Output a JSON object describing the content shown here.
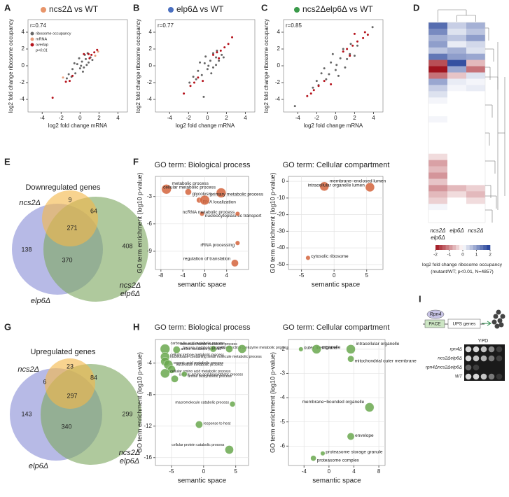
{
  "chart_data": [
    {
      "type": "scatter",
      "panel": "A",
      "title": "ncs2Δ vs WT",
      "title_marker": "#e8956a",
      "annotation": "r=0.74",
      "xlabel": "log2 fold change mRNA",
      "ylabel": "log2 fold change ribosome occupancy",
      "xlim": [
        -5.5,
        5
      ],
      "ylim": [
        -5.5,
        5.5
      ],
      "xticks": [
        -4,
        -2,
        0,
        2,
        4
      ],
      "yticks": [
        -4,
        -2,
        0,
        2,
        4
      ],
      "legend": true,
      "legend_note": "p<0.01",
      "series": [
        {
          "name": "ribosome occupancy",
          "color": "#666666",
          "x": [
            -1.2,
            -0.8,
            -0.5,
            -0.3,
            0,
            0.2,
            0.4,
            0.6,
            0.9,
            1.1,
            -0.6,
            0.3,
            -0.1,
            0.7,
            -0.9,
            0.5,
            1.3,
            -1.4,
            0.1,
            0.8
          ],
          "values": [
            -1.0,
            -0.4,
            -0.9,
            0.2,
            -0.3,
            0.5,
            -0.2,
            0.8,
            0.4,
            1.0,
            0.3,
            -0.7,
            0.9,
            0.1,
            -1.3,
            1.3,
            0.7,
            -1.5,
            0.0,
            1.5
          ]
        },
        {
          "name": "mRNA",
          "color": "#e79a78",
          "x": [
            1.6,
            -1.8,
            1.9
          ],
          "values": [
            1.2,
            -1.4,
            1.7
          ]
        },
        {
          "name": "overlap",
          "color": "#b5121b",
          "x": [
            0.9,
            1.2,
            1.5,
            1.8,
            -0.8,
            -1.1,
            -1.5,
            -2.9,
            1.0,
            0.4
          ],
          "values": [
            1.4,
            1.3,
            1.6,
            1.9,
            -1.2,
            -1.8,
            -1.9,
            -3.8,
            0.9,
            1.4
          ]
        }
      ]
    },
    {
      "type": "scatter",
      "panel": "B",
      "title": "elp6Δ vs WT",
      "title_marker": "#4a6fc0",
      "annotation": "r=0.77",
      "xlabel": "log2 fold change mRNA",
      "ylabel": "log2 fold change ribosome occupancy",
      "xlim": [
        -5.5,
        5
      ],
      "ylim": [
        -5.5,
        5.5
      ],
      "xticks": [
        -4,
        -2,
        0,
        2,
        4
      ],
      "yticks": [
        -4,
        -2,
        0,
        2,
        4
      ],
      "series": [
        {
          "color": "#666666",
          "x": [
            -1.5,
            -1,
            -0.6,
            -0.3,
            0,
            0.3,
            0.6,
            0.9,
            1.2,
            1.5,
            -0.8,
            0.4,
            -0.2,
            0.9,
            -1.2,
            0.6,
            1.7,
            -1.9,
            0.1,
            1.0,
            -0.4
          ],
          "values": [
            -1.3,
            -0.6,
            -1.1,
            0.3,
            -0.4,
            0.6,
            -0.2,
            1.0,
            0.6,
            1.3,
            0.4,
            -0.9,
            1.1,
            0.1,
            -1.6,
            1.5,
            1.0,
            -2.0,
            0,
            1.8,
            -3.7
          ]
        },
        {
          "color": "#b5121b",
          "x": [
            1.0,
            1.4,
            1.8,
            2.2,
            -1.0,
            -1.4,
            -1.8,
            -2.5,
            0.6,
            2.6,
            1.2,
            -0.5
          ],
          "values": [
            1.6,
            1.8,
            2.2,
            2.6,
            -1.4,
            -2.0,
            -2.4,
            -3.3,
            1.3,
            3.4,
            0.9,
            -1.8
          ]
        }
      ]
    },
    {
      "type": "scatter",
      "panel": "C",
      "title": "ncs2Δelp6Δ vs WT",
      "title_marker": "#3a9a4a",
      "annotation": "r=0.85",
      "xlabel": "log2 fold change mRNA",
      "ylabel": "log2 fold change ribosome occupancy",
      "xlim": [
        -5.5,
        5
      ],
      "ylim": [
        -5.5,
        5.5
      ],
      "xticks": [
        -4,
        -2,
        0,
        2,
        4
      ],
      "yticks": [
        -4,
        -2,
        0,
        2,
        4
      ],
      "series": [
        {
          "color": "#666666",
          "x": [
            -2,
            -1.5,
            -1,
            -0.5,
            0,
            0.5,
            1,
            1.5,
            2,
            -1.2,
            0.3,
            -0.3,
            1.2,
            -1.8,
            0.8,
            2.3,
            -2.4,
            0.1,
            1.6,
            -0.7,
            -4.3,
            3.9
          ],
          "values": [
            -1.8,
            -0.9,
            -1.6,
            0.4,
            -0.5,
            0.9,
            -0.2,
            1.4,
            1.2,
            -0.3,
            -1.2,
            1.4,
            0.8,
            -2.3,
            2.0,
            2.4,
            -2.6,
            0.1,
            2.6,
            -1.0,
            -4.8,
            4.6
          ]
        },
        {
          "color": "#b5121b",
          "x": [
            1.2,
            1.8,
            2.3,
            2.9,
            -1.2,
            -1.8,
            -2.3,
            -3.0,
            0.8,
            3.4,
            -0.5,
            1.5,
            -2.6,
            2.0,
            3.1
          ],
          "values": [
            2.0,
            2.4,
            2.9,
            3.3,
            -1.8,
            -2.4,
            -2.9,
            -3.6,
            1.7,
            3.7,
            -2.2,
            1.2,
            -3.3,
            3.8,
            4.0
          ]
        }
      ]
    },
    {
      "type": "heatmap",
      "panel": "D",
      "columns": [
        [
          "ncs2Δ",
          "elp6Δ"
        ],
        [
          "elp6Δ"
        ],
        [
          "ncs2Δ"
        ]
      ],
      "rows": [
        [
          1.5,
          0.5,
          0.8
        ],
        [
          1.2,
          0.3,
          0.6
        ],
        [
          0.8,
          0.6,
          1.0
        ],
        [
          1.0,
          0.2,
          0.4
        ],
        [
          0.6,
          0.8,
          0.3
        ],
        [
          1.4,
          1.0,
          0.9
        ],
        [
          -1.5,
          1.8,
          -0.6
        ],
        [
          -2,
          0.9,
          -1.2
        ],
        [
          -1.2,
          -0.5,
          0.3
        ],
        [
          0.9,
          0.2,
          0.1
        ],
        [
          0.5,
          0.1,
          0.2
        ],
        [
          0.3,
          0,
          0
        ],
        [
          0.1,
          0,
          0
        ],
        [
          0,
          0,
          0
        ],
        [
          0,
          0,
          0
        ],
        [
          0.1,
          0,
          0
        ],
        [
          0,
          0,
          0
        ],
        [
          0,
          0,
          0
        ],
        [
          0,
          0,
          0
        ],
        [
          0,
          0,
          0
        ],
        [
          0,
          0,
          0
        ],
        [
          -0.3,
          0,
          0
        ],
        [
          -0.8,
          0,
          0
        ],
        [
          -0.6,
          0,
          0
        ],
        [
          -0.9,
          0,
          0
        ],
        [
          -0.5,
          0,
          0
        ],
        [
          -0.9,
          -0.6,
          -0.4
        ],
        [
          -0.6,
          -0.3,
          -0.6
        ],
        [
          -0.4,
          0,
          -0.3
        ],
        [
          0.1,
          0,
          0
        ],
        [
          0,
          0,
          0
        ],
        [
          0,
          0,
          0
        ]
      ],
      "colorbar_ticks": [
        -2,
        -1,
        0,
        1,
        2
      ],
      "colorbar_label": [
        "log2 fold change ribosome occupancy",
        "(mutant/WT; p<0.01, N=4857)"
      ]
    },
    {
      "type": "venn",
      "panel": "E",
      "title": "Downregulated genes",
      "sets": [
        {
          "name": "ncs2Δ",
          "color": "#f3b84a"
        },
        {
          "name": "elp6Δ",
          "color": "#8a8fd6"
        },
        {
          "name": [
            "ncs2Δ",
            "elp6Δ"
          ],
          "color": "#7ea861"
        }
      ],
      "region_values": [
        9,
        64,
        271,
        138,
        370,
        408
      ]
    },
    {
      "type": "bubble",
      "panel": "F",
      "title": "GO term: Biological process",
      "xlabel": "semantic space",
      "ylabel": "GO term enrichment (log10 p-value)",
      "xlim": [
        -9,
        8
      ],
      "ylim": [
        -11,
        -0.8
      ],
      "xticks": [
        -8,
        -4,
        0,
        4
      ],
      "yticks": [
        -3,
        -6,
        -9
      ],
      "grid": true,
      "color": "#d4643c",
      "labels": [
        "metabolic process",
        "glycolysis",
        "cellular metabolic process",
        "RNA localization",
        "primary metabolic process",
        "nucleocytoplasmic transport",
        "ncRNA metabolic process",
        "rRNA processing",
        "regulation of translation"
      ],
      "x": [
        -7,
        -3,
        3,
        -1,
        0,
        -0.5,
        6,
        6,
        5.5
      ],
      "values": [
        -2.2,
        -2.5,
        -2.6,
        -3.4,
        -3.4,
        -4.9,
        -4.9,
        -8.1,
        -10.3
      ],
      "sizes": [
        9,
        4,
        9,
        3,
        9,
        2,
        2,
        2,
        5
      ]
    },
    {
      "type": "bubble",
      "title": "GO term: Cellular compartment",
      "xlabel": "semantic space",
      "ylabel": "GO term enrichment (log10 p-value)",
      "xlim": [
        -7,
        7.5
      ],
      "ylim": [
        -53,
        3
      ],
      "xticks": [
        -5,
        0,
        5
      ],
      "yticks": [
        0,
        -10,
        -20,
        -30,
        -40,
        -50
      ],
      "grid": true,
      "color": "#d4643c",
      "labels": [
        "membrane−enclosed lumen",
        "intracellular organelle lumen",
        "cytosolic ribosome"
      ],
      "x": [
        -1.5,
        5.5,
        -4
      ],
      "values": [
        -3,
        -3.5,
        -46
      ],
      "sizes": [
        8,
        8,
        2
      ]
    },
    {
      "type": "venn",
      "panel": "G",
      "title": "Upregulated genes",
      "sets": [
        {
          "name": "ncs2Δ",
          "color": "#f3b84a"
        },
        {
          "name": "elp6Δ",
          "color": "#8a8fd6"
        },
        {
          "name": [
            "ncs2Δ",
            "elp6Δ"
          ],
          "color": "#7ea861"
        }
      ],
      "region_values": [
        23,
        6,
        84,
        297,
        143,
        340,
        299
      ]
    },
    {
      "type": "bubble",
      "panel": "H",
      "title": "GO term: Biological process",
      "xlabel": "semantic space",
      "ylabel": "GO term enrichment (log10 p-value)",
      "xlim": [
        -7.5,
        7
      ],
      "ylim": [
        -17,
        -1
      ],
      "xticks": [
        -5,
        0,
        5
      ],
      "yticks": [
        -4,
        -8,
        -12,
        -16
      ],
      "grid": true,
      "color": "#6aa84f",
      "labels": [
        "carboxylic acid metabolic process",
        "amine metabolic process",
        "oxidoreduction coenzyme metabolic process",
        "hexose metabolic process",
        "monosaccharide metabolic process",
        "cellular ketone metabolic process",
        "nucleobase-containing small molecule metabolic process",
        "organic acid metabolic process",
        "nucleotide metabolic process",
        "cellular amino acid metabolic process",
        "cellular amino acid biosynthetic process",
        "amine biosynthetic process",
        "macromolecule catabolic process",
        "response to heat",
        "cellular protein catabolic process"
      ],
      "x": [
        -6,
        -4.2,
        1.5,
        4,
        6,
        -6,
        -6,
        -5.5,
        -5,
        -6,
        -4.5,
        -3,
        4.5,
        -0.7,
        4
      ],
      "values": [
        -2.2,
        -2.3,
        -2.2,
        -2.2,
        -2.2,
        -3.2,
        -3.8,
        -4.2,
        -4.8,
        -5.3,
        -6,
        -5.4,
        -9.2,
        -11.8,
        -15
      ],
      "sizes": [
        9,
        5,
        4,
        5,
        7,
        8,
        7,
        8,
        6,
        8,
        5,
        3,
        3,
        5,
        7
      ]
    },
    {
      "type": "bubble",
      "title": "GO term: Cellular compartment",
      "xlabel": "semantic space",
      "ylabel": "GO term enrichment (log10 p-value)",
      "xlim": [
        -6.5,
        9
      ],
      "ylim": [
        -6.8,
        -1.6
      ],
      "xticks": [
        -4,
        0,
        4,
        8
      ],
      "yticks": [
        -2,
        -3,
        -4,
        -5,
        -6
      ],
      "grid": true,
      "color": "#6aa84f",
      "labels": [
        "outer membrane",
        "organelle",
        "intracellular organelle",
        "mitochondrial outer membrane",
        "membrane−bounded organelle",
        "envelope",
        "proteasome storage granule",
        "proteasome complex"
      ],
      "x": [
        -4.5,
        -2,
        3.5,
        3.5,
        6.5,
        3.5,
        -1,
        -2.5
      ],
      "values": [
        -2,
        -2,
        -2,
        -2.4,
        -4.4,
        -5.6,
        -6.3,
        -6.5
      ],
      "sizes": [
        2,
        8,
        8,
        4,
        8,
        5,
        2,
        3
      ]
    },
    {
      "type": "spot_assay",
      "panel": "I",
      "factor": "Rpn4",
      "promoter": "PACE",
      "gene": "UPS genes",
      "medium": "YPD",
      "strains": [
        "rpn4Δ",
        "ncs2Δelp6Δ",
        "rpn4Δncs2Δelp6Δ",
        "WT"
      ]
    }
  ]
}
